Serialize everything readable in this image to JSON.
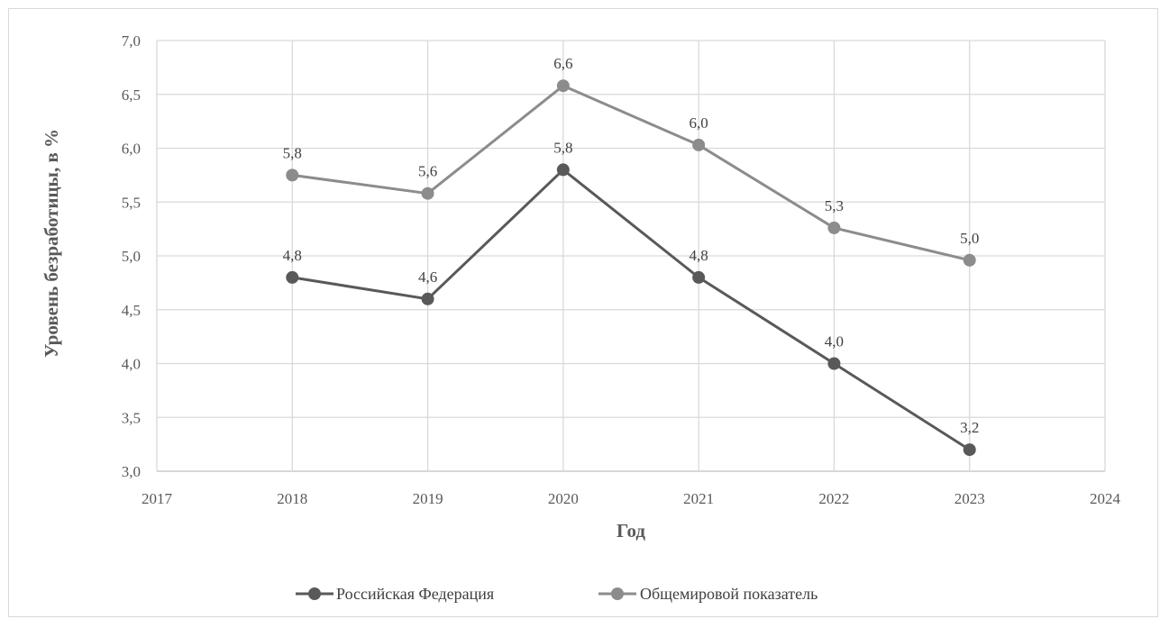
{
  "chart_data": {
    "type": "line",
    "title": "",
    "xlabel": "Год",
    "ylabel": "Уровень безработицы, в %",
    "xlim": [
      2017,
      2024
    ],
    "ylim": [
      3.0,
      7.0
    ],
    "x_ticks": [
      "2017",
      "2018",
      "2019",
      "2020",
      "2021",
      "2022",
      "2023",
      "2024"
    ],
    "y_ticks": [
      "3,0",
      "3,5",
      "4,0",
      "4,5",
      "5,0",
      "5,5",
      "6,0",
      "6,5",
      "7,0"
    ],
    "grid": true,
    "legend_position": "bottom",
    "x": [
      2018,
      2019,
      2020,
      2021,
      2022,
      2023
    ],
    "series": [
      {
        "name": "Российская Федерация",
        "color": "#595959",
        "values": [
          4.8,
          4.6,
          5.8,
          4.8,
          4.0,
          3.2
        ],
        "labels": [
          "4,8",
          "4,6",
          "5,8",
          "4,8",
          "4,0",
          "3,2"
        ]
      },
      {
        "name": "Общемировой показатель",
        "color": "#8c8c8c",
        "values": [
          5.75,
          5.58,
          6.58,
          6.03,
          5.26,
          4.96
        ],
        "labels": [
          "5,8",
          "5,6",
          "6,6",
          "6,0",
          "5,3",
          "5,0"
        ]
      }
    ]
  }
}
